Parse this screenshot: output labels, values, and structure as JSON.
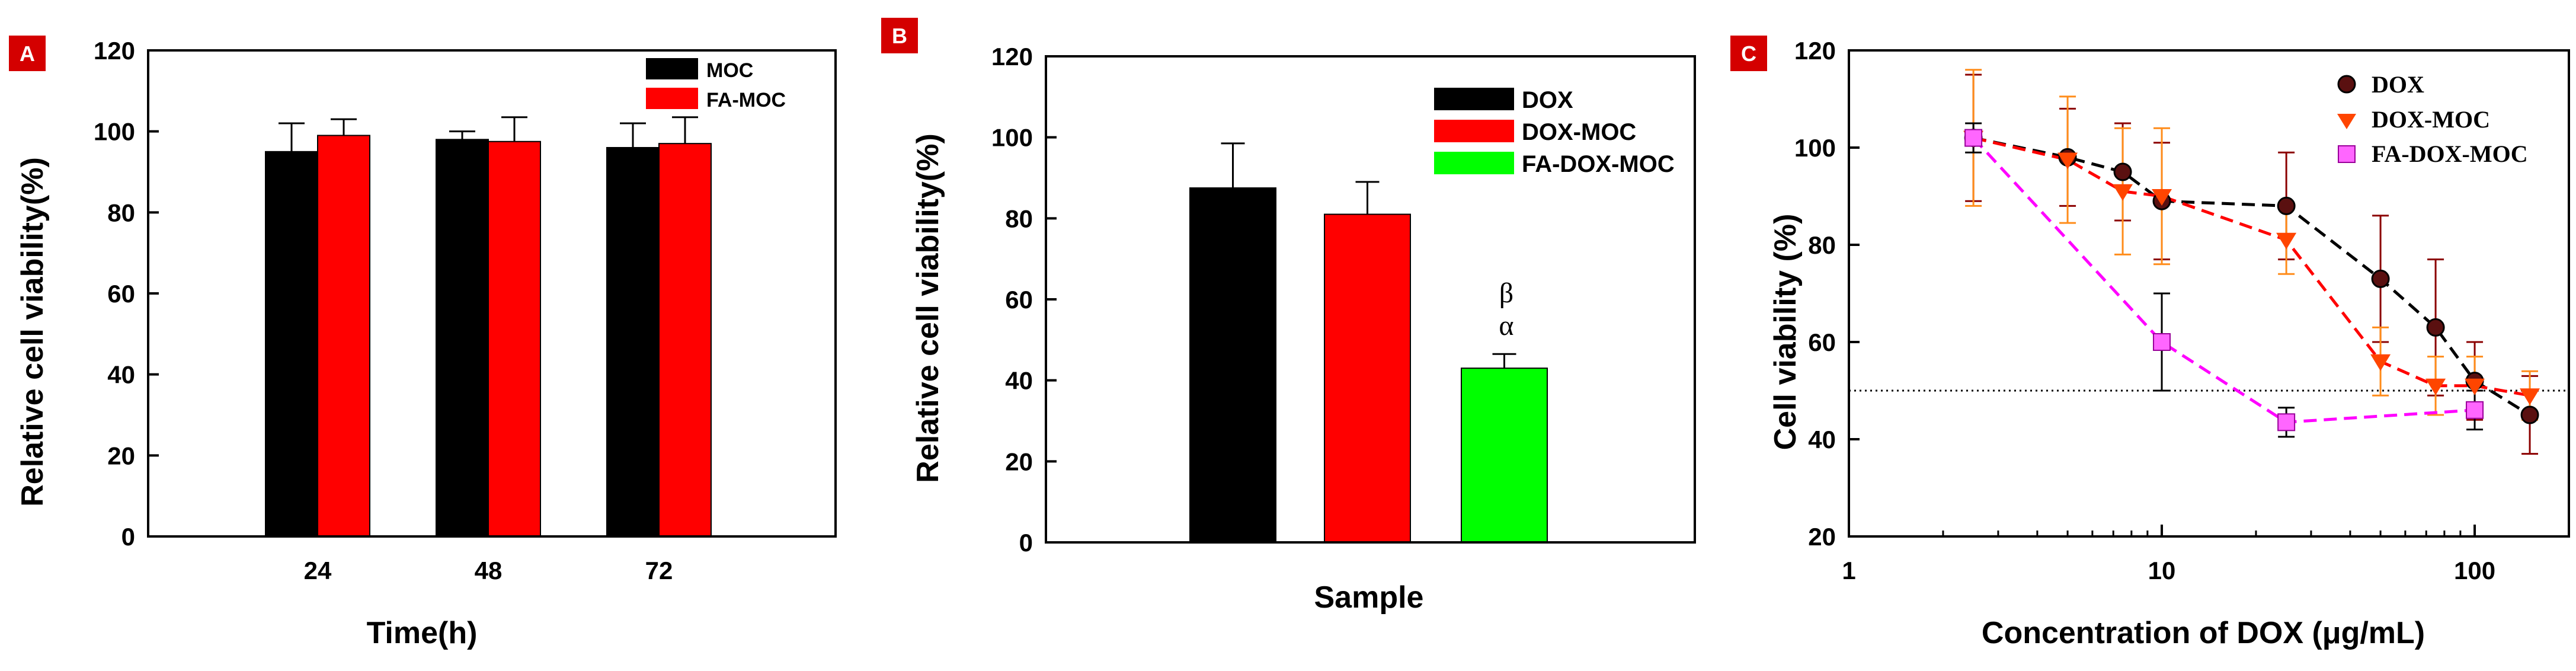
{
  "chart_data": [
    {
      "panel": "A",
      "type": "bar",
      "xlabel": "Time(h)",
      "ylabel": "Relative cell viability(%)",
      "ylim": [
        0,
        120
      ],
      "yticks": [
        0,
        20,
        40,
        60,
        80,
        100,
        120
      ],
      "categories": [
        "24",
        "48",
        "72"
      ],
      "series": [
        {
          "name": "MOC",
          "color": "#000000",
          "values": [
            95,
            98,
            96
          ],
          "errors": [
            7,
            2,
            6
          ]
        },
        {
          "name": "FA-MOC",
          "color": "#ff0000",
          "values": [
            99,
            97.5,
            97
          ],
          "errors": [
            4,
            6,
            6.5
          ]
        }
      ],
      "legend_position": "top-right"
    },
    {
      "panel": "B",
      "type": "bar",
      "xlabel": "Sample",
      "ylabel": "Relative cell viability(%)",
      "ylim": [
        0,
        120
      ],
      "yticks": [
        0,
        20,
        40,
        60,
        80,
        100,
        120
      ],
      "categories": [
        "DOX",
        "DOX-MOC",
        "FA-DOX-MOC"
      ],
      "series": [
        {
          "name": "DOX",
          "color": "#000000",
          "value": 87.5,
          "error": 11
        },
        {
          "name": "DOX-MOC",
          "color": "#ff0000",
          "value": 81,
          "error": 8
        },
        {
          "name": "FA-DOX-MOC",
          "color": "#00ff00",
          "value": 43,
          "error": 3.5
        }
      ],
      "annotations": [
        "β",
        "α"
      ],
      "legend_position": "top-right"
    },
    {
      "panel": "C",
      "type": "line",
      "xlabel": "Concentration of DOX (μg/mL)",
      "ylabel": "Cell viability (%)",
      "xscale": "log",
      "xlim": [
        1,
        200
      ],
      "ylim": [
        20,
        120
      ],
      "xticks": [
        1,
        10,
        100
      ],
      "yticks": [
        20,
        40,
        60,
        80,
        100,
        120
      ],
      "reference_line_y": 50,
      "series": [
        {
          "name": "DOX",
          "marker": "circle",
          "color": "#000000",
          "marker_color": "#5a1010",
          "x": [
            2.5,
            5,
            7.5,
            10,
            25,
            50,
            75,
            100,
            150
          ],
          "y": [
            102,
            98,
            95,
            89,
            88,
            73,
            63,
            52,
            45
          ],
          "errors": [
            13,
            10,
            10,
            12,
            11,
            13,
            14,
            8,
            8
          ]
        },
        {
          "name": "DOX-MOC",
          "marker": "triangle-down",
          "color": "#ff0000",
          "marker_color": "#ff4500",
          "x": [
            2.5,
            5,
            7.5,
            10,
            25,
            50,
            75,
            100,
            150
          ],
          "y": [
            102,
            97.5,
            91,
            90,
            81,
            56,
            51,
            51,
            49
          ],
          "errors": [
            14,
            13,
            13,
            14,
            7,
            7,
            6,
            6,
            5
          ]
        },
        {
          "name": "FA-DOX-MOC",
          "marker": "square",
          "color": "#ff00ff",
          "marker_color": "#ff66ff",
          "x": [
            2.5,
            10,
            25,
            100
          ],
          "y": [
            102,
            60,
            43.5,
            46
          ],
          "errors": [
            3,
            10,
            3,
            4
          ]
        }
      ],
      "legend_position": "top-right"
    }
  ],
  "panels": {
    "A": {
      "badge": "A",
      "legend": [
        "MOC",
        "FA-MOC"
      ]
    },
    "B": {
      "badge": "B",
      "legend": [
        "DOX",
        "DOX-MOC",
        "FA-DOX-MOC"
      ],
      "sig_beta": "β",
      "sig_alpha": "α"
    },
    "C": {
      "badge": "C",
      "legend": [
        "DOX",
        "DOX-MOC",
        "FA-DOX-MOC"
      ]
    }
  },
  "colors": {
    "badge": "#d40000",
    "black": "#000000",
    "red": "#ff0000",
    "green": "#00ff00",
    "magenta": "#ff00ff",
    "orange": "#ff8c1a"
  }
}
